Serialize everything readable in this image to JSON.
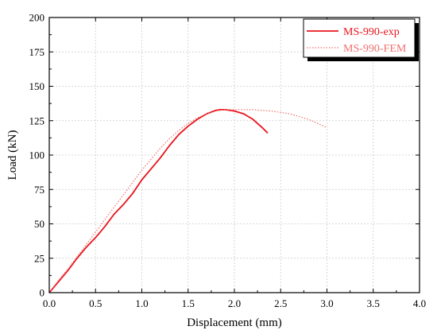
{
  "chart_data": {
    "type": "line",
    "title": "",
    "xlabel": "Displacement (mm)",
    "ylabel": "Load (kN)",
    "xlim": [
      0,
      4.0
    ],
    "ylim": [
      0,
      200
    ],
    "x_ticks": [
      "0.0",
      "0.5",
      "1.0",
      "1.5",
      "2.0",
      "2.5",
      "3.0",
      "3.5",
      "4.0"
    ],
    "y_ticks": [
      "0",
      "25",
      "50",
      "75",
      "100",
      "125",
      "150",
      "175",
      "200"
    ],
    "grid": true,
    "legend_position": "top-right",
    "series": [
      {
        "name": "MS-990-exp",
        "style": "solid",
        "color": "#e8141b",
        "points": [
          [
            0,
            0
          ],
          [
            0.1,
            8
          ],
          [
            0.2,
            16
          ],
          [
            0.3,
            25
          ],
          [
            0.4,
            33
          ],
          [
            0.5,
            40
          ],
          [
            0.6,
            48
          ],
          [
            0.7,
            57
          ],
          [
            0.8,
            64
          ],
          [
            0.9,
            72
          ],
          [
            1.0,
            82
          ],
          [
            1.1,
            90
          ],
          [
            1.2,
            98
          ],
          [
            1.3,
            107
          ],
          [
            1.4,
            115
          ],
          [
            1.5,
            121
          ],
          [
            1.6,
            126
          ],
          [
            1.7,
            130
          ],
          [
            1.8,
            132.5
          ],
          [
            1.85,
            133
          ],
          [
            1.9,
            133
          ],
          [
            2.0,
            132
          ],
          [
            2.1,
            130
          ],
          [
            2.2,
            126
          ],
          [
            2.3,
            120
          ],
          [
            2.36,
            116
          ]
        ]
      },
      {
        "name": "MS-990-FEM",
        "style": "dotted",
        "color": "#f07070",
        "points": [
          [
            0,
            0
          ],
          [
            0.1,
            9
          ],
          [
            0.2,
            17
          ],
          [
            0.3,
            26
          ],
          [
            0.4,
            35
          ],
          [
            0.5,
            44
          ],
          [
            0.6,
            53
          ],
          [
            0.7,
            62
          ],
          [
            0.8,
            71
          ],
          [
            0.9,
            80
          ],
          [
            1.0,
            89
          ],
          [
            1.1,
            97
          ],
          [
            1.2,
            105
          ],
          [
            1.3,
            112
          ],
          [
            1.4,
            118
          ],
          [
            1.5,
            123
          ],
          [
            1.6,
            127
          ],
          [
            1.7,
            130
          ],
          [
            1.8,
            132
          ],
          [
            1.9,
            133
          ],
          [
            2.0,
            133
          ],
          [
            2.2,
            133
          ],
          [
            2.4,
            132
          ],
          [
            2.6,
            130
          ],
          [
            2.8,
            126
          ],
          [
            3.0,
            120
          ]
        ]
      }
    ]
  }
}
